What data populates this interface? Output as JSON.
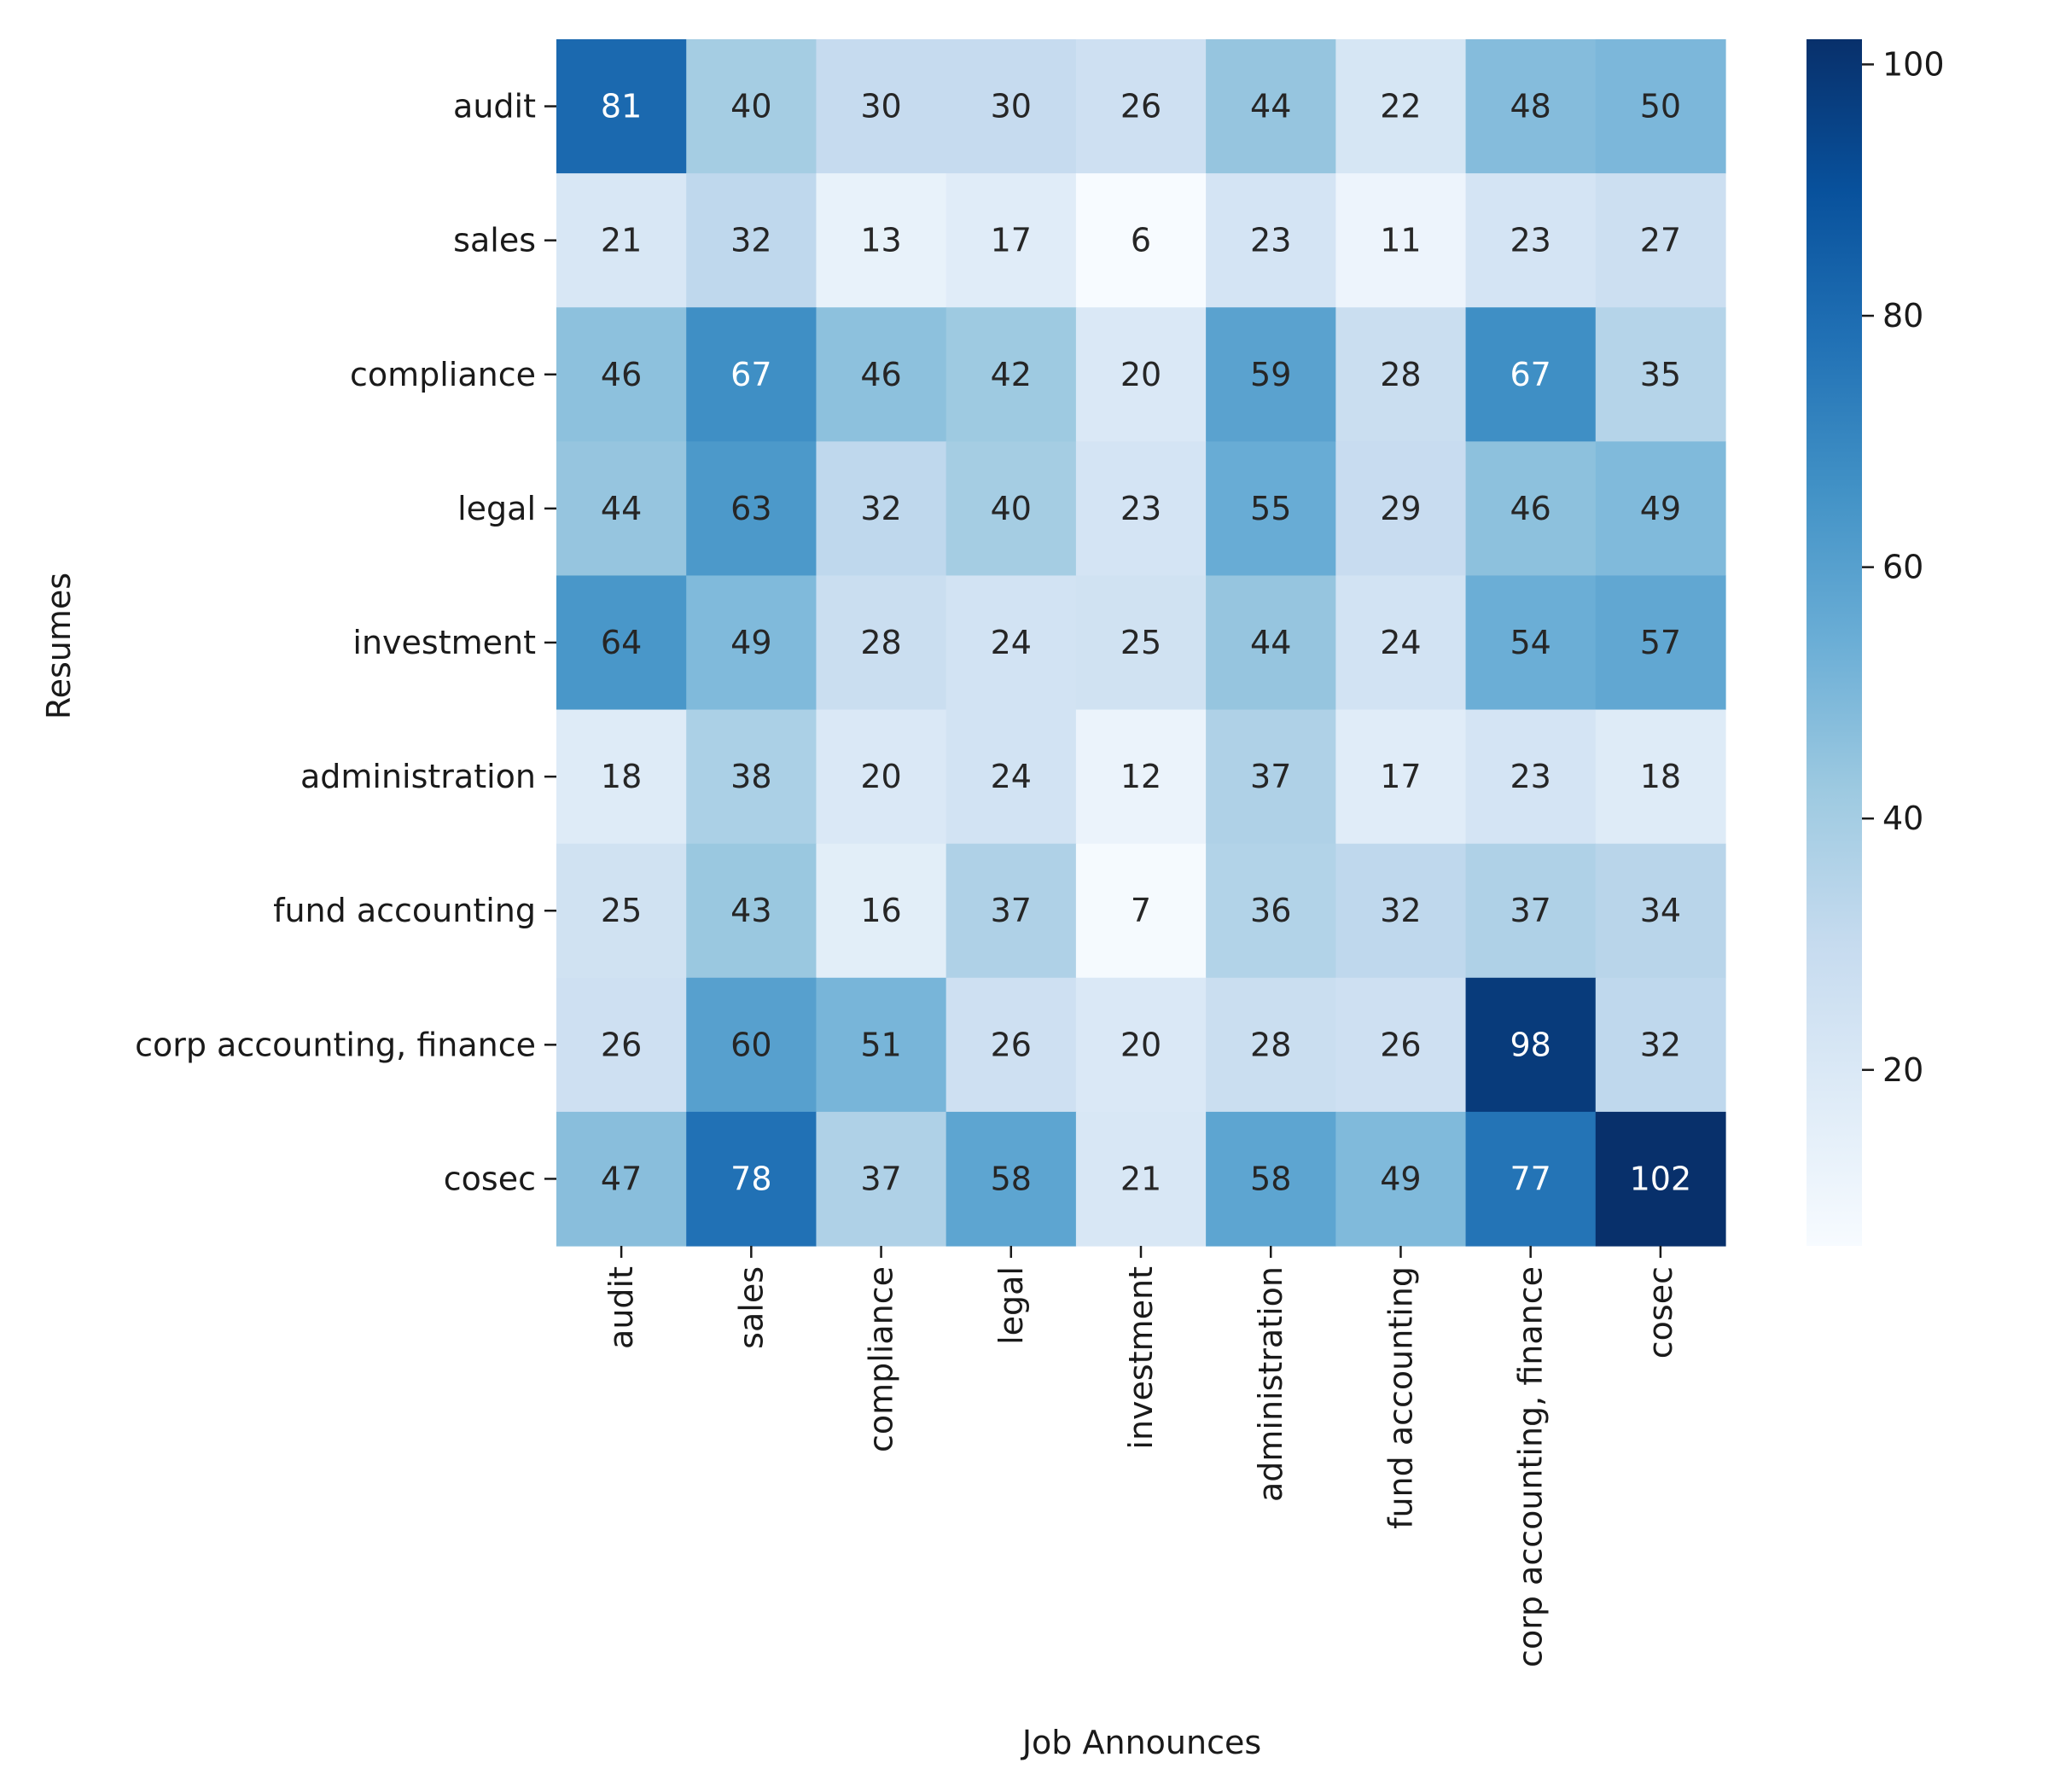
{
  "chart_data": {
    "type": "heatmap",
    "xlabel": "Job Announces",
    "ylabel": "Resumes",
    "x_categories": [
      "audit",
      "sales",
      "compliance",
      "legal",
      "investment",
      "administration",
      "fund accounting",
      "corp accounting, finance",
      "cosec"
    ],
    "y_categories": [
      "audit",
      "sales",
      "compliance",
      "legal",
      "investment",
      "administration",
      "fund accounting",
      "corp accounting, finance",
      "cosec"
    ],
    "values": [
      [
        81,
        40,
        30,
        30,
        26,
        44,
        22,
        48,
        50
      ],
      [
        21,
        32,
        13,
        17,
        6,
        23,
        11,
        23,
        27
      ],
      [
        46,
        67,
        46,
        42,
        20,
        59,
        28,
        67,
        35
      ],
      [
        44,
        63,
        32,
        40,
        23,
        55,
        29,
        46,
        49
      ],
      [
        64,
        49,
        28,
        24,
        25,
        44,
        24,
        54,
        57
      ],
      [
        18,
        38,
        20,
        24,
        12,
        37,
        17,
        23,
        18
      ],
      [
        25,
        43,
        16,
        37,
        7,
        36,
        32,
        37,
        34
      ],
      [
        26,
        60,
        51,
        26,
        20,
        28,
        26,
        98,
        32
      ],
      [
        47,
        78,
        37,
        58,
        21,
        58,
        49,
        77,
        102
      ]
    ],
    "colorbar": {
      "colormap": "Blues",
      "range": [
        6,
        102
      ],
      "ticks": [
        20,
        40,
        60,
        80,
        100
      ],
      "tick_labels": [
        "20",
        "40",
        "60",
        "80",
        "100"
      ]
    },
    "legend": "colorbar-right",
    "grid": false
  }
}
